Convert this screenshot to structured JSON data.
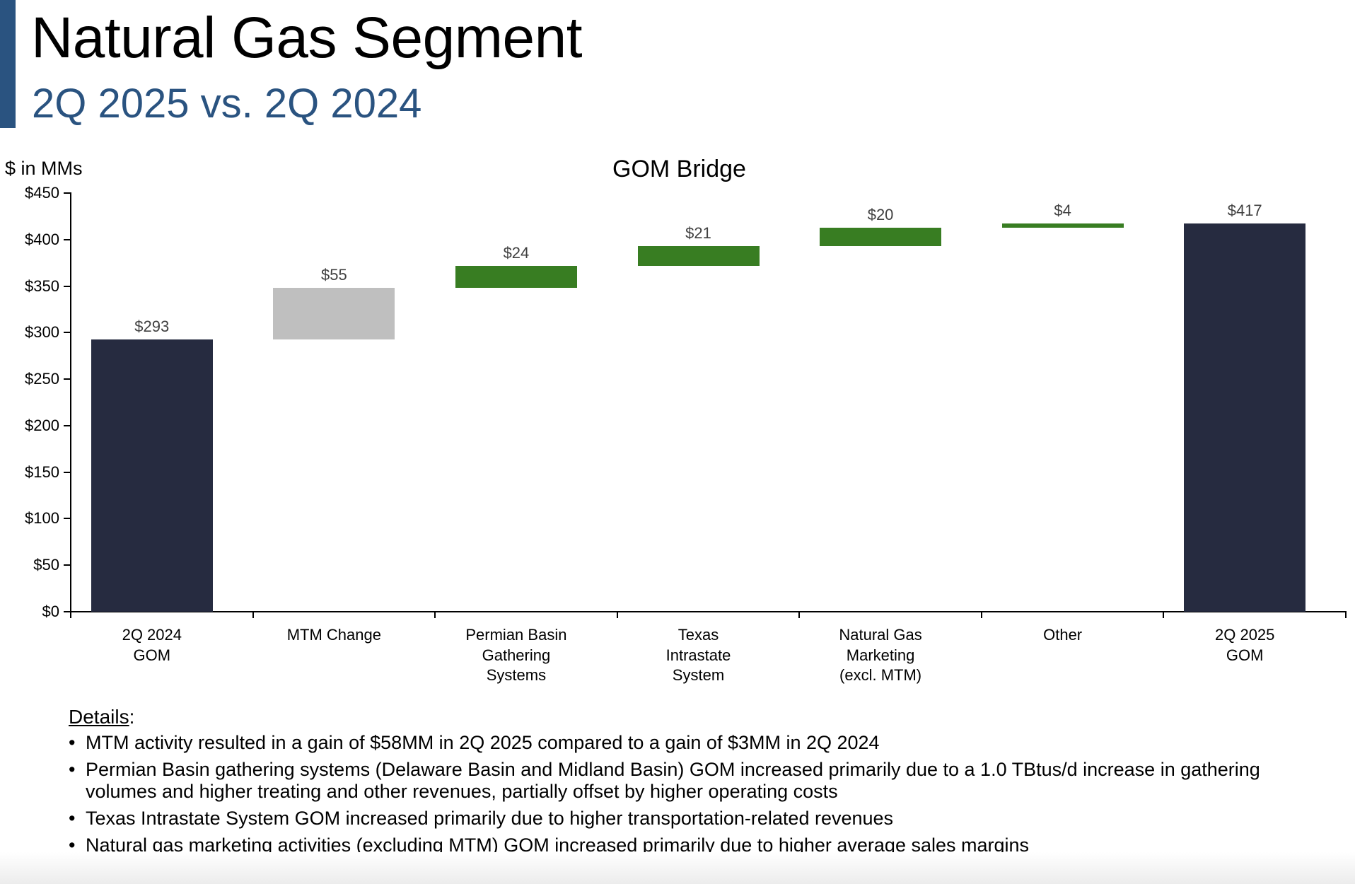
{
  "header": {
    "title": "Natural Gas Segment",
    "subtitle": "2Q 2025 vs. 2Q 2024",
    "accent_color": "#2a5380"
  },
  "chart": {
    "units_label": "$ in MMs",
    "title": "GOM Bridge"
  },
  "details": {
    "heading": "Details",
    "heading_suffix": ":",
    "bullets": [
      "MTM activity resulted in a gain of $58MM in 2Q 2025 compared to a gain of $3MM in 2Q 2024",
      "Permian Basin gathering systems (Delaware Basin and Midland Basin) GOM increased primarily due to a 1.0 TBtus/d increase in gathering volumes and higher treating and other revenues, partially offset by higher operating costs",
      "Texas Intrastate System GOM increased primarily due to higher transportation-related revenues",
      "Natural gas marketing activities (excluding MTM) GOM increased primarily due to higher average sales margins"
    ],
    "bullet_glyph": "•"
  },
  "chart_data": {
    "type": "bar",
    "subtype": "waterfall",
    "title": "GOM Bridge",
    "ylabel": "$ in MMs",
    "xlabel": "",
    "ylim": [
      0,
      450
    ],
    "y_ticks": [
      0,
      50,
      100,
      150,
      200,
      250,
      300,
      350,
      400,
      450
    ],
    "y_tick_labels": [
      "$0",
      "$50",
      "$100",
      "$150",
      "$200",
      "$250",
      "$300",
      "$350",
      "$400",
      "$450"
    ],
    "grid": false,
    "legend": null,
    "categories": [
      "2Q 2024\nGOM",
      "MTM Change",
      "Permian Basin\nGathering\nSystems",
      "Texas\nIntrastate\nSystem",
      "Natural Gas\nMarketing\n(excl. MTM)",
      "Other",
      "2Q 2025\nGOM"
    ],
    "values": [
      293,
      55,
      24,
      21,
      20,
      4,
      417
    ],
    "value_labels": [
      "$293",
      "$55",
      "$24",
      "$21",
      "$20",
      "$4",
      "$417"
    ],
    "bar_kind": [
      "total",
      "delta",
      "delta",
      "delta",
      "delta",
      "delta",
      "total"
    ],
    "bar_start": [
      0,
      293,
      348,
      372,
      393,
      413,
      0
    ],
    "bar_end": [
      293,
      348,
      372,
      393,
      413,
      417,
      417
    ],
    "colors": [
      "#262b40",
      "#bfbfbf",
      "#387d22",
      "#387d22",
      "#387d22",
      "#387d22",
      "#262b40"
    ]
  }
}
